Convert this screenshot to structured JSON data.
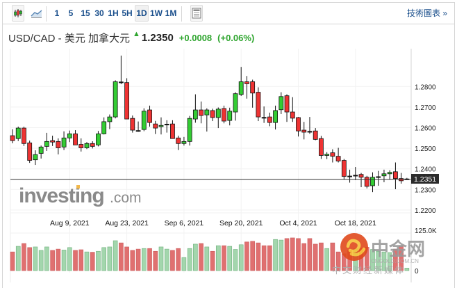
{
  "toolbar": {
    "chart_types": [
      {
        "name": "candlestick-icon",
        "active": true
      },
      {
        "name": "line-chart-icon",
        "active": false
      }
    ],
    "timeframes": [
      "1",
      "5",
      "15",
      "30",
      "1H",
      "5H",
      "1D",
      "1W",
      "1M"
    ],
    "active_timeframe": "1D",
    "technical_chart_link": "技術圖表 »"
  },
  "header": {
    "symbol_name": "USD/CAD - 美元 加拿大元",
    "direction_icon": "up-arrow-icon",
    "price": "1.2350",
    "change": "+0.0008",
    "change_pct": "(+0.06%)"
  },
  "colors": {
    "up": "#33cc33",
    "down": "#ee3333",
    "vol_up": "#a3d6ad",
    "vol_down": "#e07070",
    "positive_text": "#2ea52e",
    "link": "#1a4f8c"
  },
  "watermarks": {
    "investing": "investing.com",
    "cngold_name": "中金网",
    "cngold_domain": "CNGOLD.COM.CN",
    "cngold_slogan": "中文财经新媒体"
  },
  "chart_data": {
    "type": "candlestick",
    "title": "USD/CAD",
    "price_ticks": [
      "1.2800",
      "1.2700",
      "1.2600",
      "1.2500",
      "1.2400",
      "1.2300",
      "1.2200"
    ],
    "price_range": [
      1.218,
      1.296
    ],
    "last_price_label": "1.2351",
    "last_price": 1.2351,
    "volume_ticks": [
      "125.0K",
      "0"
    ],
    "volume_max": 125,
    "date_labels": [
      {
        "label": "Aug 9, 2021",
        "index": 10
      },
      {
        "label": "Aug 23, 2021",
        "index": 20
      },
      {
        "label": "Sep 6, 2021",
        "index": 30
      },
      {
        "label": "Sep 20, 2021",
        "index": 40
      },
      {
        "label": "Oct 4, 2021",
        "index": 50
      },
      {
        "label": "Oct 18, 2021",
        "index": 60
      }
    ],
    "ohlc": [
      [
        1.2561,
        1.2592,
        1.2524,
        1.2537
      ],
      [
        1.2547,
        1.2605,
        1.2535,
        1.2598
      ],
      [
        1.2598,
        1.2605,
        1.2511,
        1.2523
      ],
      [
        1.2526,
        1.2537,
        1.2429,
        1.2441
      ],
      [
        1.2444,
        1.249,
        1.2419,
        1.2469
      ],
      [
        1.2475,
        1.2513,
        1.245,
        1.2506
      ],
      [
        1.2509,
        1.2575,
        1.2487,
        1.2533
      ],
      [
        1.2537,
        1.2561,
        1.2511,
        1.253
      ],
      [
        1.2533,
        1.2548,
        1.247,
        1.2502
      ],
      [
        1.2506,
        1.2582,
        1.2491,
        1.255
      ],
      [
        1.255,
        1.2586,
        1.253,
        1.257
      ],
      [
        1.257,
        1.2588,
        1.2516,
        1.2516
      ],
      [
        1.2519,
        1.2548,
        1.2484,
        1.2502
      ],
      [
        1.2502,
        1.253,
        1.2496,
        1.2523
      ],
      [
        1.2523,
        1.2534,
        1.2499,
        1.2509
      ],
      [
        1.2516,
        1.2584,
        1.2509,
        1.257
      ],
      [
        1.257,
        1.265,
        1.2567,
        1.2629
      ],
      [
        1.2629,
        1.2664,
        1.2593,
        1.2652
      ],
      [
        1.2652,
        1.283,
        1.2645,
        1.2823
      ],
      [
        1.2822,
        1.295,
        1.2811,
        1.2821
      ],
      [
        1.2819,
        1.284,
        1.2642,
        1.2642
      ],
      [
        1.2645,
        1.2659,
        1.2576,
        1.2588
      ],
      [
        1.2586,
        1.263,
        1.258,
        1.2585
      ],
      [
        1.2591,
        1.2694,
        1.2583,
        1.268
      ],
      [
        1.2686,
        1.2707,
        1.2605,
        1.2625
      ],
      [
        1.2618,
        1.2633,
        1.2569,
        1.2598
      ],
      [
        1.2605,
        1.265,
        1.2567,
        1.2611
      ],
      [
        1.2617,
        1.2636,
        1.2576,
        1.2617
      ],
      [
        1.2618,
        1.2636,
        1.2547,
        1.2547
      ],
      [
        1.255,
        1.2561,
        1.2491,
        1.2523
      ],
      [
        1.2523,
        1.2555,
        1.2513,
        1.2533
      ],
      [
        1.2533,
        1.2657,
        1.2513,
        1.2645
      ],
      [
        1.2642,
        1.2762,
        1.2624,
        1.2686
      ],
      [
        1.2686,
        1.2727,
        1.2621,
        1.2659
      ],
      [
        1.2662,
        1.2694,
        1.2581,
        1.2686
      ],
      [
        1.2683,
        1.2692,
        1.2632,
        1.2649
      ],
      [
        1.2649,
        1.2698,
        1.2598,
        1.269
      ],
      [
        1.2693,
        1.2707,
        1.2621,
        1.2632
      ],
      [
        1.2635,
        1.2697,
        1.2611,
        1.268
      ],
      [
        1.2676,
        1.2772,
        1.2634,
        1.2765
      ],
      [
        1.2761,
        1.2895,
        1.2754,
        1.2823
      ],
      [
        1.2823,
        1.2851,
        1.2741,
        1.2813
      ],
      [
        1.2823,
        1.2833,
        1.2697,
        1.2768
      ],
      [
        1.2772,
        1.2796,
        1.2632,
        1.2652
      ],
      [
        1.265,
        1.2703,
        1.2623,
        1.2649
      ],
      [
        1.2652,
        1.2673,
        1.2607,
        1.2625
      ],
      [
        1.2625,
        1.2707,
        1.2591,
        1.2683
      ],
      [
        1.2687,
        1.2772,
        1.2666,
        1.2751
      ],
      [
        1.2755,
        1.2762,
        1.2628,
        1.2676
      ],
      [
        1.2676,
        1.2748,
        1.2628,
        1.2646
      ],
      [
        1.2649,
        1.2652,
        1.2557,
        1.2584
      ],
      [
        1.2588,
        1.2628,
        1.2543,
        1.2578
      ],
      [
        1.2582,
        1.2652,
        1.257,
        1.2581
      ],
      [
        1.2584,
        1.2598,
        1.2539,
        1.2543
      ],
      [
        1.2547,
        1.256,
        1.2448,
        1.2465
      ],
      [
        1.2465,
        1.2481,
        1.2447,
        1.2471
      ],
      [
        1.2478,
        1.2495,
        1.2431,
        1.2461
      ],
      [
        1.2461,
        1.2502,
        1.2431,
        1.2438
      ],
      [
        1.2441,
        1.2448,
        1.2349,
        1.2363
      ],
      [
        1.2365,
        1.2396,
        1.2333,
        1.2364
      ],
      [
        1.2368,
        1.2409,
        1.2345,
        1.2369
      ],
      [
        1.2373,
        1.238,
        1.2311,
        1.2359
      ],
      [
        1.2359,
        1.2366,
        1.2305,
        1.2315
      ],
      [
        1.2318,
        1.2383,
        1.2287,
        1.2359
      ],
      [
        1.2361,
        1.239,
        1.2318,
        1.2362
      ],
      [
        1.2366,
        1.2396,
        1.2335,
        1.2376
      ],
      [
        1.2376,
        1.2393,
        1.2349,
        1.2383
      ],
      [
        1.2386,
        1.2431,
        1.2301,
        1.2353
      ],
      [
        1.2353,
        1.238,
        1.2328,
        1.2342
      ],
      [
        1.235,
        1.2356,
        1.2345,
        1.2351
      ]
    ],
    "volume_k": [
      60,
      78,
      87,
      74,
      76,
      65,
      76,
      65,
      69,
      66,
      74,
      65,
      67,
      60,
      59,
      62,
      74,
      76,
      96,
      89,
      76,
      65,
      69,
      71,
      71,
      62,
      76,
      69,
      65,
      71,
      42,
      71,
      85,
      87,
      76,
      62,
      80,
      80,
      78,
      68,
      83,
      92,
      94,
      89,
      80,
      80,
      100,
      98,
      103,
      105,
      103,
      87,
      103,
      85,
      89,
      71,
      89,
      60,
      54,
      65,
      70,
      72,
      75,
      68,
      62,
      60,
      58,
      69,
      80,
      8
    ]
  }
}
